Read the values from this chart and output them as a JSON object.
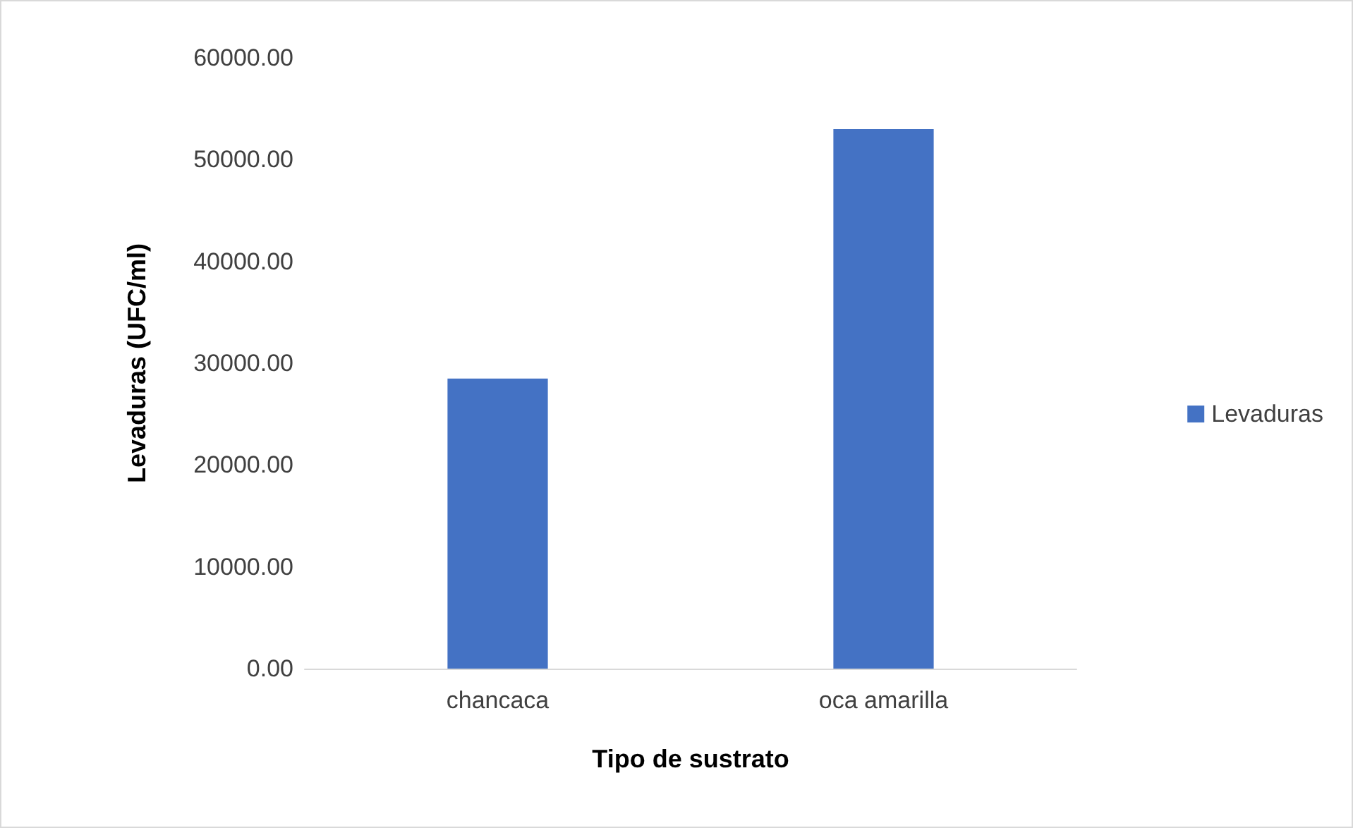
{
  "chart_data": {
    "type": "bar",
    "xlabel": "Tipo de sustrato",
    "ylabel": "Levaduras (UFC/ml)",
    "categories": [
      "chancaca",
      "oca amarilla"
    ],
    "series": [
      {
        "name": "Levaduras",
        "color": "#4472c4",
        "values": [
          28500,
          53000
        ]
      }
    ],
    "ylim": [
      0,
      60000
    ],
    "yticks": [
      {
        "value": 0,
        "label": "0.00"
      },
      {
        "value": 10000,
        "label": "10000.00"
      },
      {
        "value": 20000,
        "label": "20000.00"
      },
      {
        "value": 30000,
        "label": "30000.00"
      },
      {
        "value": 40000,
        "label": "40000.00"
      },
      {
        "value": 50000,
        "label": "50000.00"
      },
      {
        "value": 60000,
        "label": "60000.00"
      }
    ],
    "grid": false,
    "legend": "right"
  }
}
